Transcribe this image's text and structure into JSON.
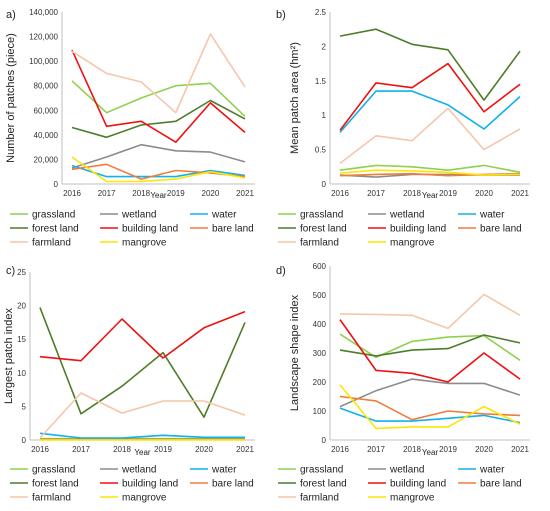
{
  "colors": {
    "grassland": "#8fd14f",
    "wetland": "#8c8c8c",
    "water": "#11b0ee",
    "forest land": "#4e7d2a",
    "building land": "#ee1111",
    "bare land": "#ee7d3a",
    "farmland": "#f6c6aa",
    "mangrove": "#ffe400"
  },
  "chart_data": [
    {
      "panel": "a)",
      "type": "line",
      "title": "",
      "xlabel": "Year",
      "ylabel": "Number of patches  (piece)",
      "x": [
        "2016",
        "2017",
        "2018",
        "2019",
        "2020",
        "2021"
      ],
      "ylim": [
        0,
        140000
      ],
      "yticks": [
        "0",
        "20,000",
        "40,000",
        "60,000",
        "80,000",
        "100,000",
        "120,000",
        "140,000"
      ],
      "series": [
        {
          "name": "grassland",
          "values": [
            84000,
            58000,
            70000,
            80000,
            82000,
            55000
          ]
        },
        {
          "name": "wetland",
          "values": [
            13000,
            22000,
            32000,
            27000,
            26000,
            18000
          ]
        },
        {
          "name": "water",
          "values": [
            15000,
            6000,
            6000,
            6000,
            11000,
            7000
          ]
        },
        {
          "name": "forest  land",
          "values": [
            46000,
            38000,
            48000,
            51000,
            68000,
            53000
          ]
        },
        {
          "name": "building land",
          "values": [
            109000,
            47000,
            51000,
            34000,
            66000,
            42000
          ]
        },
        {
          "name": "bare land",
          "values": [
            12000,
            16000,
            4000,
            11000,
            9000,
            6000
          ]
        },
        {
          "name": "farmland",
          "values": [
            108000,
            90000,
            83000,
            58000,
            122000,
            79000
          ]
        },
        {
          "name": "mangrove",
          "values": [
            22000,
            2000,
            2000,
            4000,
            10000,
            5000
          ]
        }
      ],
      "legend_position": "below"
    },
    {
      "panel": "b)",
      "type": "line",
      "title": "",
      "xlabel": "Year",
      "ylabel": "Mean patch area  (hm²)",
      "x": [
        "2016",
        "2017",
        "2018",
        "2019",
        "2020",
        "2021"
      ],
      "ylim": [
        0,
        2.5
      ],
      "yticks": [
        "0",
        "0.5",
        "1",
        "1.5",
        "2",
        "2.5"
      ],
      "series": [
        {
          "name": "grassland",
          "values": [
            0.2,
            0.27,
            0.25,
            0.2,
            0.27,
            0.17
          ]
        },
        {
          "name": "wetland",
          "values": [
            0.13,
            0.1,
            0.14,
            0.14,
            0.13,
            0.13
          ]
        },
        {
          "name": "water",
          "values": [
            0.75,
            1.35,
            1.35,
            1.15,
            0.8,
            1.27
          ]
        },
        {
          "name": "forest  land",
          "values": [
            2.15,
            2.25,
            2.03,
            1.95,
            1.22,
            1.93
          ]
        },
        {
          "name": "building land",
          "values": [
            0.78,
            1.47,
            1.4,
            1.75,
            1.05,
            1.45
          ]
        },
        {
          "name": "bare land",
          "values": [
            0.12,
            0.14,
            0.15,
            0.12,
            0.14,
            0.15
          ]
        },
        {
          "name": "farmland",
          "values": [
            0.3,
            0.7,
            0.63,
            1.1,
            0.5,
            0.8
          ]
        },
        {
          "name": "mangrove",
          "values": [
            0.16,
            0.2,
            0.19,
            0.17,
            0.13,
            0.14
          ]
        }
      ],
      "legend_position": "below"
    },
    {
      "panel": "c)",
      "type": "line",
      "title": "",
      "xlabel": "Year",
      "ylabel": "Largest patch index",
      "x": [
        "2016",
        "2017",
        "2018",
        "2019",
        "2020",
        "2021"
      ],
      "ylim": [
        0,
        25
      ],
      "yticks": [
        "0",
        "5",
        "10",
        "15",
        "20",
        "25"
      ],
      "series": [
        {
          "name": "grassland",
          "values": [
            0.2,
            0.2,
            0.2,
            0.2,
            0.2,
            0.2
          ]
        },
        {
          "name": "wetland",
          "values": [
            0.1,
            0.1,
            0.1,
            0.1,
            0.1,
            0.1
          ]
        },
        {
          "name": "water",
          "values": [
            1.0,
            0.3,
            0.3,
            0.7,
            0.4,
            0.4
          ]
        },
        {
          "name": "forest  land",
          "values": [
            19.7,
            3.9,
            8.0,
            13.0,
            3.4,
            17.5
          ]
        },
        {
          "name": "building land",
          "values": [
            12.4,
            11.8,
            18.0,
            12.2,
            16.7,
            19.1
          ]
        },
        {
          "name": "bare land",
          "values": [
            0.05,
            0.05,
            0.05,
            0.05,
            0.05,
            0.05
          ]
        },
        {
          "name": "farmland",
          "values": [
            0.3,
            7.0,
            4.0,
            5.8,
            5.8,
            3.7
          ]
        },
        {
          "name": "mangrove",
          "values": [
            0.02,
            0.02,
            0.02,
            0.02,
            0.02,
            0.02
          ]
        }
      ],
      "legend_position": "below"
    },
    {
      "panel": "d)",
      "type": "line",
      "title": "",
      "xlabel": "Year",
      "ylabel": "Landscape shape index",
      "x": [
        "2016",
        "2017",
        "2018",
        "2019",
        "2020",
        "2021"
      ],
      "ylim": [
        0,
        600
      ],
      "yticks": [
        "0",
        "100",
        "200",
        "300",
        "400",
        "500",
        "600"
      ],
      "series": [
        {
          "name": "grassland",
          "values": [
            365,
            285,
            340,
            355,
            360,
            275
          ]
        },
        {
          "name": "wetland",
          "values": [
            115,
            170,
            210,
            195,
            195,
            155
          ]
        },
        {
          "name": "water",
          "values": [
            110,
            65,
            65,
            75,
            85,
            60
          ]
        },
        {
          "name": "forest  land",
          "values": [
            310,
            290,
            310,
            315,
            362,
            335
          ]
        },
        {
          "name": "building land",
          "values": [
            415,
            240,
            230,
            200,
            300,
            210
          ]
        },
        {
          "name": "bare land",
          "values": [
            150,
            135,
            70,
            100,
            90,
            85
          ]
        },
        {
          "name": "farmland",
          "values": [
            435,
            433,
            430,
            385,
            502,
            430
          ]
        },
        {
          "name": "mangrove",
          "values": [
            190,
            40,
            45,
            45,
            115,
            55
          ]
        }
      ],
      "legend_position": "below"
    }
  ]
}
